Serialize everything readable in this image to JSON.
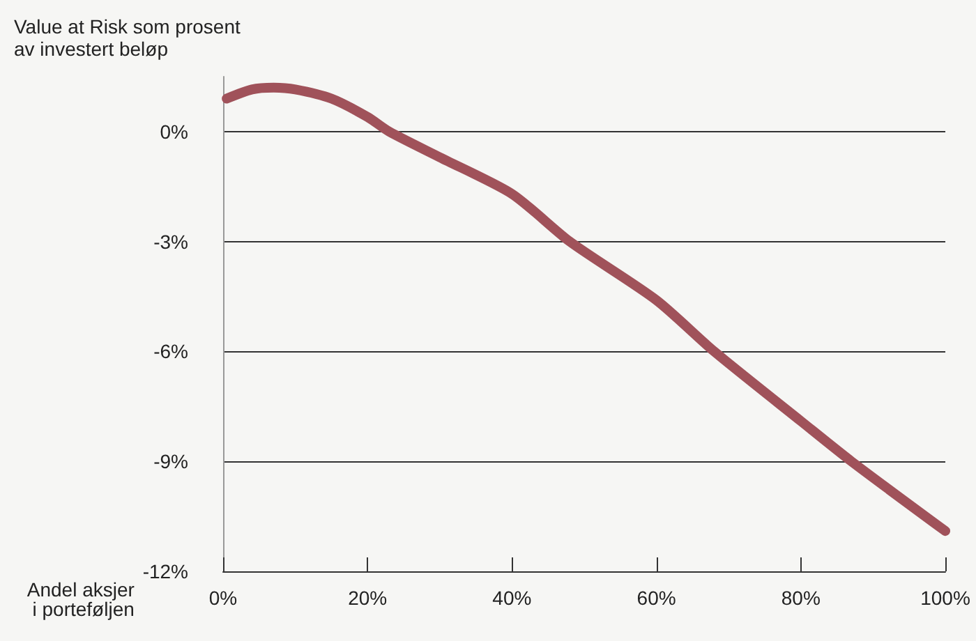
{
  "chart_data": {
    "type": "line",
    "xlabel": "Andel aksjer\ni porteføljen",
    "ylabel": "Value at Risk som prosent\nav investert beløp",
    "x": [
      0.5,
      4,
      7,
      10,
      15,
      20,
      23,
      30,
      40,
      48,
      60,
      68,
      80,
      87,
      100
    ],
    "series": [
      {
        "color": "#a0525a",
        "values": [
          0.9,
          1.15,
          1.2,
          1.15,
          0.9,
          0.4,
          0.0,
          -0.7,
          -1.7,
          -3.0,
          -4.6,
          -6.0,
          -7.9,
          -9.0,
          -10.9
        ]
      }
    ],
    "xlim": [
      0,
      100
    ],
    "ylim": [
      -12,
      1.5
    ],
    "xticks": [
      {
        "value": 0,
        "label": "0%"
      },
      {
        "value": 20,
        "label": "20%"
      },
      {
        "value": 40,
        "label": "40%"
      },
      {
        "value": 60,
        "label": "60%"
      },
      {
        "value": 80,
        "label": "80%"
      },
      {
        "value": 100,
        "label": "100%"
      }
    ],
    "yticks": [
      {
        "value": -12,
        "label": "-12%"
      },
      {
        "value": -9,
        "label": "-9%"
      },
      {
        "value": -6,
        "label": "-6%"
      },
      {
        "value": -3,
        "label": "-3%"
      },
      {
        "value": 0,
        "label": "0%"
      }
    ],
    "grid": "y",
    "line_style": "solid"
  }
}
